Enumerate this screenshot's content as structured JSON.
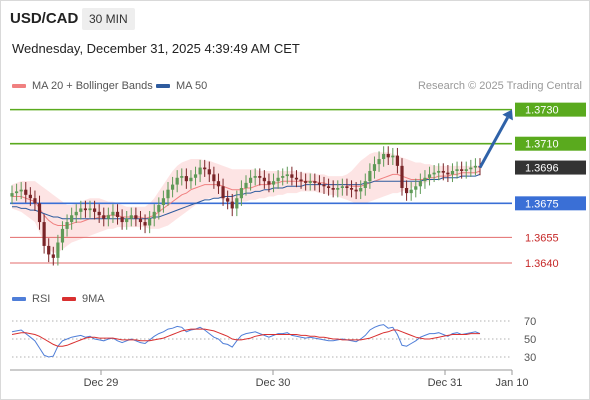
{
  "header": {
    "symbol": "USD/CAD",
    "timeframe": "30 MIN",
    "datetime": "Wednesday, December 31, 2025 4:39:49 AM CET"
  },
  "legend": {
    "ma20_bb": "MA 20 + Bollinger Bands",
    "ma50": "MA 50",
    "rsi": "RSI",
    "rsi_ma": "9MA"
  },
  "credit": "Research © 2025 Trading Central",
  "colors": {
    "bullish_resistance": "#5aaa1e",
    "support_blue": "#3a6fd6",
    "support_red": "#e36b6b",
    "last_price_bg": "#333333",
    "bollinger_fill": "#fde1e1",
    "ma20": "#f08080",
    "ma50": "#2e5b9e",
    "rsi_line": "#4f7ed8",
    "rsi_ma_line": "#d93030",
    "arrow": "#2f62a8",
    "candle_up": "#5f9a57",
    "candle_down": "#7a2528"
  },
  "chart_data": [
    {
      "type": "candlestick",
      "title": "USD/CAD",
      "ylim": [
        1.363,
        1.3738
      ],
      "x_ticks": [
        "Dec 29",
        "Dec 30",
        "Dec 31",
        "Jan 10"
      ],
      "levels": [
        {
          "value": 1.373,
          "label": "1.3730",
          "kind": "resistance"
        },
        {
          "value": 1.371,
          "label": "1.3710",
          "kind": "resistance"
        },
        {
          "value": 1.3696,
          "label": "1.3696",
          "kind": "last_price"
        },
        {
          "value": 1.3675,
          "label": "1.3675",
          "kind": "pivot"
        },
        {
          "value": 1.3655,
          "label": "1.3655",
          "kind": "support"
        },
        {
          "value": 1.364,
          "label": "1.3640",
          "kind": "support"
        }
      ],
      "close": [
        1.3681,
        1.3682,
        1.3683,
        1.368,
        1.3678,
        1.3675,
        1.3664,
        1.365,
        1.3645,
        1.3643,
        1.3652,
        1.366,
        1.3664,
        1.3668,
        1.367,
        1.3672,
        1.3671,
        1.3672,
        1.367,
        1.3668,
        1.3666,
        1.3668,
        1.367,
        1.3667,
        1.3664,
        1.3666,
        1.3668,
        1.3666,
        1.3664,
        1.3662,
        1.3666,
        1.367,
        1.3674,
        1.3678,
        1.3683,
        1.3686,
        1.369,
        1.3691,
        1.3688,
        1.369,
        1.3692,
        1.3696,
        1.3695,
        1.3692,
        1.3688,
        1.3685,
        1.3678,
        1.3676,
        1.3672,
        1.3678,
        1.3684,
        1.3687,
        1.369,
        1.3691,
        1.369,
        1.3688,
        1.3686,
        1.3688,
        1.369,
        1.3691,
        1.3692,
        1.369,
        1.3689,
        1.3688,
        1.3687,
        1.3688,
        1.3687,
        1.3686,
        1.3685,
        1.3684,
        1.3683,
        1.3684,
        1.3685,
        1.3684,
        1.3683,
        1.3682,
        1.3684,
        1.3688,
        1.3694,
        1.3698,
        1.3701,
        1.3704,
        1.3702,
        1.3703,
        1.3697,
        1.3684,
        1.3681,
        1.3683,
        1.3685,
        1.3688,
        1.369,
        1.3692,
        1.3693,
        1.3694,
        1.3693,
        1.3692,
        1.3694,
        1.3695,
        1.3694,
        1.3695,
        1.3696,
        1.3697,
        1.3696
      ],
      "ma20": [
        1.3679,
        1.3679,
        1.3679,
        1.3678,
        1.3677,
        1.3676,
        1.3672,
        1.3668,
        1.3665,
        1.3663,
        1.3662,
        1.3662,
        1.3662,
        1.3663,
        1.3664,
        1.3664,
        1.3665,
        1.3666,
        1.3666,
        1.3667,
        1.3667,
        1.3668,
        1.3668,
        1.3668,
        1.3667,
        1.3667,
        1.3667,
        1.3667,
        1.3667,
        1.3666,
        1.3667,
        1.3668,
        1.367,
        1.3672,
        1.3674,
        1.3676,
        1.3678,
        1.368,
        1.3681,
        1.3683,
        1.3684,
        1.3685,
        1.3686,
        1.3686,
        1.3686,
        1.3686,
        1.3685,
        1.3684,
        1.3683,
        1.3683,
        1.3683,
        1.3684,
        1.3684,
        1.3685,
        1.3686,
        1.3686,
        1.3686,
        1.3687,
        1.3687,
        1.3688,
        1.3688,
        1.3688,
        1.3688,
        1.3688,
        1.3688,
        1.3688,
        1.3688,
        1.3687,
        1.3687,
        1.3686,
        1.3686,
        1.3686,
        1.3686,
        1.3686,
        1.3685,
        1.3685,
        1.3685,
        1.3686,
        1.3687,
        1.3688,
        1.3689,
        1.369,
        1.3691,
        1.3692,
        1.3692,
        1.3691,
        1.369,
        1.3689,
        1.3689,
        1.3689,
        1.3689,
        1.369,
        1.369,
        1.3691,
        1.3691,
        1.3691,
        1.3692,
        1.3692,
        1.3693,
        1.3693,
        1.3693,
        1.3693,
        1.3694
      ],
      "bb_upper": [
        1.3686,
        1.3687,
        1.3688,
        1.3688,
        1.3688,
        1.3688,
        1.3686,
        1.3684,
        1.3682,
        1.368,
        1.3678,
        1.3676,
        1.3674,
        1.3674,
        1.3675,
        1.3676,
        1.3677,
        1.3678,
        1.3678,
        1.3678,
        1.3677,
        1.3676,
        1.3676,
        1.3675,
        1.3674,
        1.3673,
        1.3673,
        1.3673,
        1.3673,
        1.3673,
        1.3675,
        1.3678,
        1.3682,
        1.3686,
        1.369,
        1.3694,
        1.3697,
        1.3699,
        1.37,
        1.3701,
        1.3701,
        1.3701,
        1.37,
        1.37,
        1.3699,
        1.3698,
        1.3697,
        1.3696,
        1.3695,
        1.3695,
        1.3695,
        1.3695,
        1.3695,
        1.3695,
        1.3694,
        1.3694,
        1.3694,
        1.3694,
        1.3694,
        1.3694,
        1.3694,
        1.3694,
        1.3694,
        1.3693,
        1.3693,
        1.3693,
        1.3692,
        1.3692,
        1.3692,
        1.3691,
        1.3691,
        1.3691,
        1.3691,
        1.3692,
        1.3694,
        1.3697,
        1.37,
        1.3702,
        1.3704,
        1.3705,
        1.3705,
        1.3705,
        1.3705,
        1.3704,
        1.3703,
        1.3702,
        1.3701,
        1.37,
        1.3699,
        1.3699,
        1.3698,
        1.3698,
        1.3697,
        1.3697,
        1.3697,
        1.3697,
        1.3697,
        1.3697,
        1.3697,
        1.3697,
        1.3697,
        1.3697,
        1.3697
      ],
      "bb_lower": [
        1.3672,
        1.3671,
        1.367,
        1.3668,
        1.3666,
        1.3664,
        1.3658,
        1.3652,
        1.3648,
        1.3646,
        1.3646,
        1.3648,
        1.365,
        1.3652,
        1.3653,
        1.3654,
        1.3655,
        1.3656,
        1.3657,
        1.3658,
        1.3659,
        1.366,
        1.366,
        1.3661,
        1.3661,
        1.3661,
        1.3661,
        1.3661,
        1.3661,
        1.3661,
        1.366,
        1.366,
        1.366,
        1.3661,
        1.3662,
        1.3664,
        1.3666,
        1.3668,
        1.367,
        1.3672,
        1.3674,
        1.3676,
        1.3677,
        1.3678,
        1.3678,
        1.3678,
        1.3677,
        1.3676,
        1.3676,
        1.3676,
        1.3676,
        1.3676,
        1.3677,
        1.3677,
        1.3678,
        1.3678,
        1.3679,
        1.3679,
        1.368,
        1.368,
        1.3681,
        1.3681,
        1.3681,
        1.3682,
        1.3682,
        1.3682,
        1.3682,
        1.3681,
        1.3681,
        1.368,
        1.368,
        1.3679,
        1.3678,
        1.3677,
        1.3676,
        1.3675,
        1.3675,
        1.3675,
        1.3676,
        1.3677,
        1.3678,
        1.3679,
        1.368,
        1.3681,
        1.3681,
        1.3682,
        1.3683,
        1.3684,
        1.3685,
        1.3686,
        1.3687,
        1.3688,
        1.3689,
        1.3689,
        1.369,
        1.369,
        1.3691,
        1.3691,
        1.3691,
        1.3691,
        1.3692,
        1.3692,
        1.3692
      ],
      "ma50": [
        1.3673,
        1.3673,
        1.3672,
        1.3672,
        1.3671,
        1.3671,
        1.367,
        1.3669,
        1.3668,
        1.3667,
        1.3667,
        1.3666,
        1.3666,
        1.3666,
        1.3666,
        1.3666,
        1.3666,
        1.3666,
        1.3666,
        1.3666,
        1.3666,
        1.3666,
        1.3666,
        1.3666,
        1.3666,
        1.3666,
        1.3666,
        1.3666,
        1.3666,
        1.3666,
        1.3666,
        1.3667,
        1.3667,
        1.3668,
        1.3669,
        1.367,
        1.3671,
        1.3672,
        1.3673,
        1.3674,
        1.3675,
        1.3676,
        1.3677,
        1.3677,
        1.3678,
        1.3678,
        1.3679,
        1.3679,
        1.3679,
        1.368,
        1.368,
        1.3681,
        1.3681,
        1.3682,
        1.3682,
        1.3683,
        1.3683,
        1.3684,
        1.3684,
        1.3684,
        1.3685,
        1.3685,
        1.3685,
        1.3685,
        1.3686,
        1.3686,
        1.3686,
        1.3686,
        1.3686,
        1.3686,
        1.3686,
        1.3686,
        1.3686,
        1.3686,
        1.3686,
        1.3686,
        1.3686,
        1.3687,
        1.3687,
        1.3688,
        1.3688,
        1.3688,
        1.3688,
        1.3688,
        1.3688,
        1.3688,
        1.3688,
        1.3688,
        1.3688,
        1.3688,
        1.3689,
        1.3689,
        1.3689,
        1.3689,
        1.369,
        1.369,
        1.369,
        1.369,
        1.3691,
        1.3691,
        1.3691,
        1.3691,
        1.3692
      ],
      "projection": {
        "from": 1.3696,
        "to": 1.373
      }
    },
    {
      "type": "line",
      "title": "RSI",
      "ylim": [
        20,
        80
      ],
      "y_ticks": [
        70,
        50,
        30
      ],
      "series": [
        {
          "name": "RSI",
          "values": [
            58,
            59,
            60,
            56,
            52,
            48,
            40,
            32,
            30,
            31,
            42,
            48,
            50,
            52,
            53,
            54,
            52,
            53,
            50,
            49,
            48,
            50,
            51,
            48,
            46,
            48,
            50,
            48,
            46,
            45,
            49,
            53,
            56,
            58,
            61,
            62,
            64,
            63,
            58,
            60,
            61,
            63,
            60,
            56,
            52,
            50,
            45,
            44,
            41,
            48,
            54,
            56,
            57,
            58,
            56,
            54,
            52,
            54,
            56,
            56,
            57,
            54,
            53,
            52,
            51,
            52,
            51,
            50,
            49,
            48,
            48,
            49,
            50,
            49,
            48,
            47,
            50,
            54,
            60,
            63,
            65,
            66,
            62,
            63,
            55,
            43,
            42,
            45,
            48,
            52,
            54,
            56,
            56,
            57,
            55,
            53,
            56,
            57,
            55,
            56,
            57,
            58,
            56
          ]
        },
        {
          "name": "9MA",
          "values": [
            55,
            56,
            57,
            57,
            56,
            55,
            53,
            50,
            47,
            44,
            42,
            42,
            43,
            45,
            47,
            49,
            51,
            52,
            52,
            51,
            51,
            51,
            51,
            50,
            49,
            49,
            49,
            49,
            48,
            48,
            48,
            49,
            50,
            51,
            53,
            55,
            57,
            59,
            60,
            61,
            61,
            61,
            61,
            60,
            59,
            57,
            55,
            53,
            50,
            49,
            49,
            50,
            51,
            53,
            54,
            55,
            55,
            55,
            55,
            55,
            55,
            55,
            55,
            54,
            54,
            53,
            53,
            52,
            52,
            51,
            50,
            50,
            49,
            49,
            49,
            49,
            49,
            50,
            51,
            53,
            55,
            57,
            58,
            60,
            60,
            58,
            56,
            54,
            52,
            51,
            50,
            50,
            51,
            52,
            53,
            54,
            55,
            55,
            55,
            55,
            56,
            56,
            56
          ]
        }
      ]
    }
  ]
}
